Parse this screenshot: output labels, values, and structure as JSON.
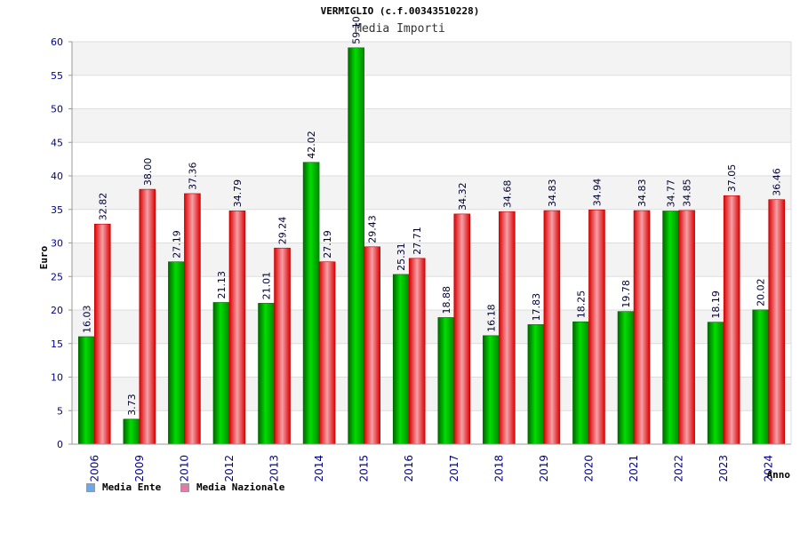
{
  "chart_data": {
    "type": "bar",
    "title": "VERMIGLIO (c.f.00343510228)",
    "subtitle": "Media Importi",
    "xlabel": "Anno",
    "ylabel": "Euro",
    "ylim": [
      0,
      60
    ],
    "yticks": [
      0,
      5,
      10,
      15,
      20,
      25,
      30,
      35,
      40,
      45,
      50,
      55,
      60
    ],
    "grid": true,
    "legend": "bottom-left",
    "categories": [
      "2006",
      "2009",
      "2010",
      "2012",
      "2013",
      "2014",
      "2015",
      "2016",
      "2017",
      "2018",
      "2019",
      "2020",
      "2021",
      "2022",
      "2023",
      "2024"
    ],
    "series": [
      {
        "name": "Media Ente",
        "color": "#00aa00",
        "legend_color": "#6aa8e8",
        "values": [
          16.03,
          3.73,
          27.19,
          21.13,
          21.01,
          42.02,
          59.1,
          25.31,
          18.88,
          16.18,
          17.83,
          18.25,
          19.78,
          34.77,
          18.19,
          20.02
        ],
        "labels": [
          "16.03",
          "3.73",
          "27.19",
          "21.13",
          "21.01",
          "42.02",
          "59.10",
          "25.31",
          "18.88",
          "16.18",
          "17.83",
          "18.25",
          "19.78",
          "34.77",
          "18.19",
          "20.02"
        ]
      },
      {
        "name": "Media Nazionale",
        "color": "#ee2222",
        "legend_color": "#e07aa8",
        "values": [
          32.82,
          38.0,
          37.36,
          34.79,
          29.24,
          27.19,
          29.43,
          27.71,
          34.32,
          34.68,
          34.83,
          34.94,
          34.83,
          34.85,
          37.05,
          36.46
        ],
        "labels": [
          "32.82",
          "38.00",
          "37.36",
          "34.79",
          "29.24",
          "27.19",
          "29.43",
          "27.71",
          "34.32",
          "34.68",
          "34.83",
          "34.94",
          "34.83",
          "34.85",
          "37.05",
          "36.46"
        ]
      }
    ]
  }
}
